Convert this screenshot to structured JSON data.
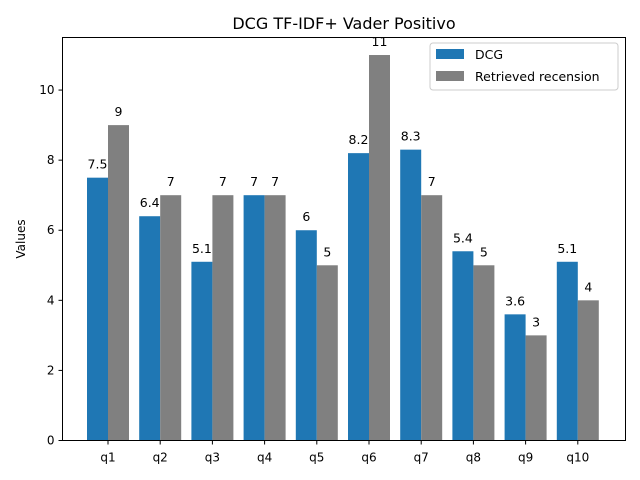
{
  "chart_data": {
    "type": "bar",
    "title": "DCG TF-IDF+ Vader Positivo",
    "xlabel": "",
    "ylabel": "Values",
    "categories": [
      "q1",
      "q2",
      "q3",
      "q4",
      "q5",
      "q6",
      "q7",
      "q8",
      "q9",
      "q10"
    ],
    "series": [
      {
        "name": "DCG",
        "color": "#1f77b4",
        "values": [
          7.5,
          6.4,
          5.1,
          7,
          6,
          8.2,
          8.3,
          5.4,
          3.6,
          5.1
        ],
        "labels": [
          "7.5",
          "6.4",
          "5.1",
          "7",
          "6",
          "8.2",
          "8.3",
          "5.4",
          "3.6",
          "5.1"
        ]
      },
      {
        "name": "Retrieved recension",
        "color": "#808080",
        "values": [
          9,
          7,
          7,
          7,
          5,
          11,
          7,
          5,
          3,
          4
        ],
        "labels": [
          "9",
          "7",
          "7",
          "7",
          "5",
          "11",
          "7",
          "5",
          "3",
          "4"
        ]
      }
    ],
    "ylim": [
      0,
      11.5
    ],
    "yticks": [
      0,
      2,
      4,
      6,
      8,
      10
    ],
    "grid": false,
    "legend_position": "top-right"
  }
}
